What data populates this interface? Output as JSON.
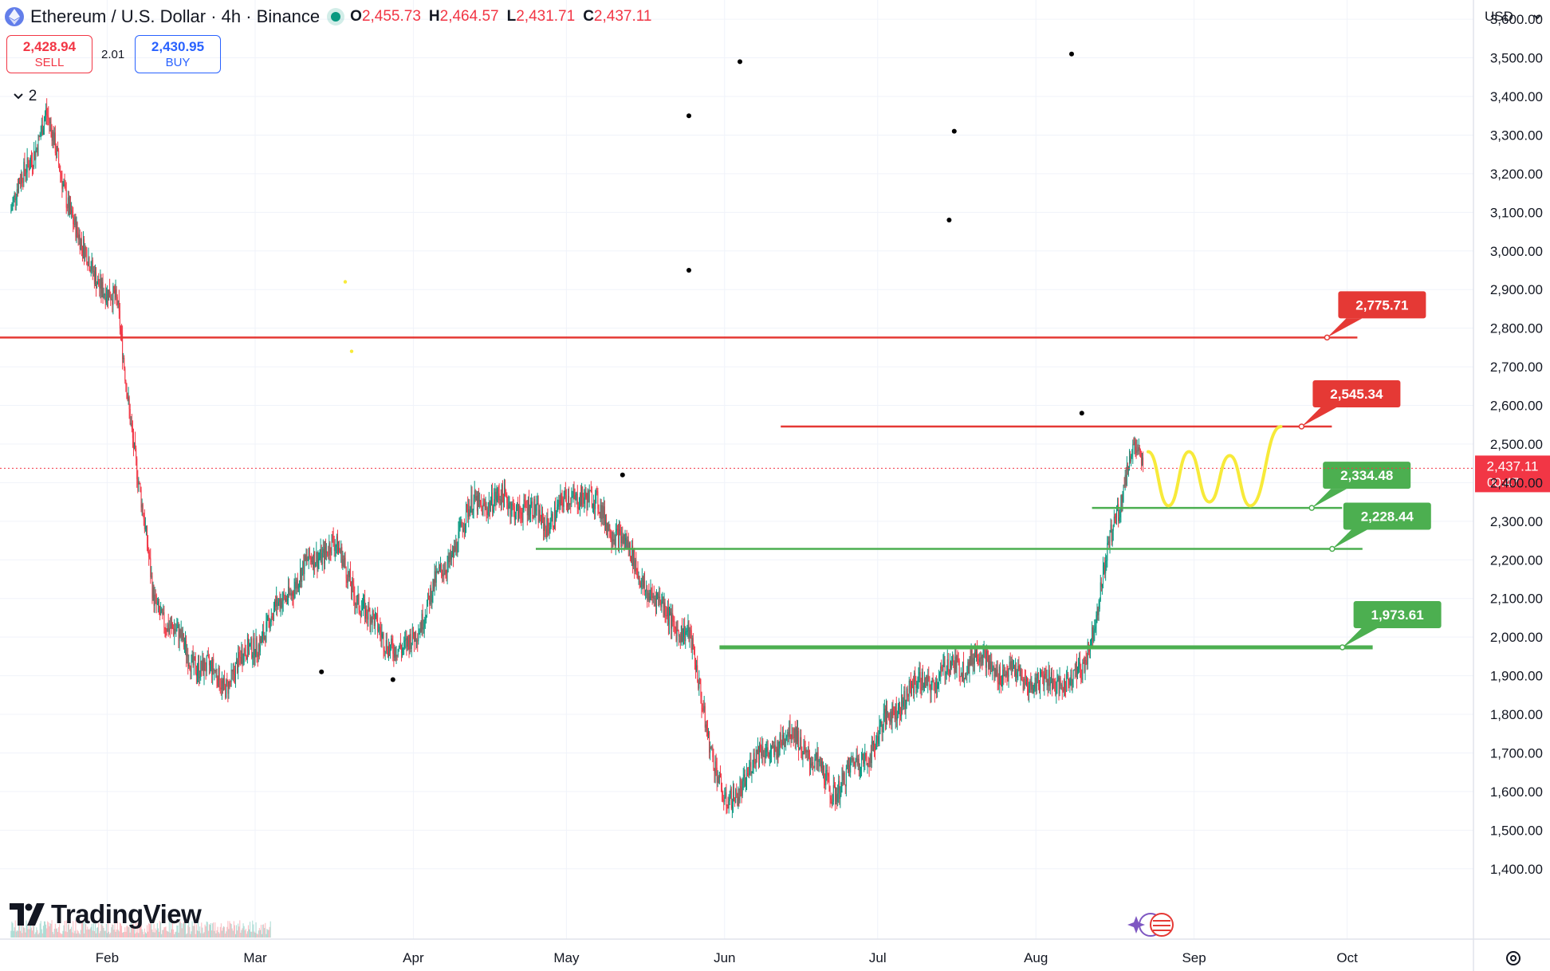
{
  "header": {
    "symbol": "Ethereum / U.S. Dollar · 4h · Binance",
    "ohlc": [
      {
        "k": "O",
        "v": "2,455.73"
      },
      {
        "k": "H",
        "v": "2,464.57"
      },
      {
        "k": "L",
        "v": "2,431.71"
      },
      {
        "k": "C",
        "v": "2,437.11"
      }
    ],
    "icon": "ethereum-icon",
    "status_color": "#089981"
  },
  "trade": {
    "sell_price": "2,428.94",
    "sell_label": "SELL",
    "spread": "2.01",
    "buy_price": "2,430.95",
    "buy_label": "BUY"
  },
  "indicators_toggle": {
    "count": "2",
    "icon": "chevron-down-icon"
  },
  "currency": {
    "value": "USD",
    "icon": "chevron-down-icon"
  },
  "brand": {
    "name": "TradingView"
  },
  "colors": {
    "up": "#089981",
    "down": "#f23645",
    "resistance": "#e53935",
    "support": "#4caf50",
    "projection": "#f7ea3a"
  },
  "chart_data": {
    "type": "candlestick",
    "title": "Ethereum / U.S. Dollar · 4h · Binance",
    "x": [
      "2024-01-13",
      "2024-01-20",
      "2024-01-27",
      "2024-02-03",
      "2024-02-10",
      "2024-02-17",
      "2024-02-24",
      "2024-03-02",
      "2024-03-09",
      "2024-03-16",
      "2024-03-23",
      "2024-03-30",
      "2024-04-06",
      "2024-04-13",
      "2024-04-20",
      "2024-04-27",
      "2024-05-04",
      "2024-05-11",
      "2024-05-18",
      "2024-05-25",
      "2024-06-01",
      "2024-06-08",
      "2024-06-15",
      "2024-06-22",
      "2024-06-29",
      "2024-07-06",
      "2024-07-13",
      "2024-07-20",
      "2024-07-27",
      "2024-08-03",
      "2024-08-10",
      "2024-08-17",
      "2024-08-20",
      "2024-08-22"
    ],
    "close": [
      3100,
      3350,
      3000,
      2850,
      2100,
      1950,
      1880,
      2000,
      2150,
      2250,
      2050,
      1950,
      2150,
      2350,
      2350,
      2300,
      2380,
      2270,
      2100,
      2000,
      1550,
      1700,
      1750,
      1600,
      1700,
      1850,
      1900,
      1950,
      1900,
      1880,
      1900,
      2330,
      2480,
      2437.11
    ],
    "ylim": [
      1360,
      3700
    ],
    "y_ticks": [
      "1,400.00",
      "1,500.00",
      "1,600.00",
      "1,700.00",
      "1,800.00",
      "1,900.00",
      "2,000.00",
      "2,100.00",
      "2,200.00",
      "2,300.00",
      "2,400.00",
      "2,500.00",
      "2,600.00",
      "2,700.00",
      "2,800.00",
      "2,900.00",
      "3,000.00",
      "3,100.00",
      "3,200.00",
      "3,300.00",
      "3,400.00",
      "3,500.00",
      "3,600.00"
    ],
    "x_ticks": [
      {
        "label": "Feb",
        "date": "2024-02-01"
      },
      {
        "label": "Mar",
        "date": "2024-03-01"
      },
      {
        "label": "Apr",
        "date": "2024-04-01"
      },
      {
        "label": "May",
        "date": "2024-05-01"
      },
      {
        "label": "Jun",
        "date": "2024-06-01"
      },
      {
        "label": "Jul",
        "date": "2024-07-01"
      },
      {
        "label": "Aug",
        "date": "2024-08-01"
      },
      {
        "label": "Sep",
        "date": "2024-09-01"
      },
      {
        "label": "Oct",
        "date": "2024-10-01"
      }
    ],
    "current_price": {
      "value": 2437.11,
      "label": "2,437.11",
      "countdown": "00:47"
    },
    "levels": [
      {
        "label": "2,775.71",
        "value": 2775.71,
        "kind": "resistance",
        "from": "2024-01-01",
        "to": "2024-10-03"
      },
      {
        "label": "2,545.34",
        "value": 2545.34,
        "kind": "resistance",
        "from": "2024-06-12",
        "to": "2024-09-28"
      },
      {
        "label": "2,334.48",
        "value": 2334.48,
        "kind": "support",
        "from": "2024-08-12",
        "to": "2024-09-30"
      },
      {
        "label": "2,228.44",
        "value": 2228.44,
        "kind": "support",
        "from": "2024-04-25",
        "to": "2024-10-04"
      },
      {
        "label": "1,973.61",
        "value": 1973.61,
        "kind": "support",
        "from": "2024-05-31",
        "to": "2024-10-06"
      }
    ],
    "projection": [
      {
        "date": "2024-08-23",
        "value": 2480
      },
      {
        "date": "2024-08-27",
        "value": 2340
      },
      {
        "date": "2024-08-31",
        "value": 2480
      },
      {
        "date": "2024-09-04",
        "value": 2350
      },
      {
        "date": "2024-09-08",
        "value": 2470
      },
      {
        "date": "2024-09-12",
        "value": 2340
      },
      {
        "date": "2024-09-18",
        "value": 2545
      }
    ],
    "markers": [
      {
        "date": "2024-05-25",
        "value": 3350
      },
      {
        "date": "2024-05-25",
        "value": 2950
      },
      {
        "date": "2024-06-04",
        "value": 3490
      },
      {
        "date": "2024-07-16",
        "value": 3310
      },
      {
        "date": "2024-07-15",
        "value": 3080
      },
      {
        "date": "2024-08-08",
        "value": 3510
      },
      {
        "date": "2024-08-10",
        "value": 2580
      },
      {
        "date": "2024-05-12",
        "value": 2420
      },
      {
        "date": "2024-03-14",
        "value": 1910
      },
      {
        "date": "2024-03-28",
        "value": 1890
      }
    ]
  }
}
